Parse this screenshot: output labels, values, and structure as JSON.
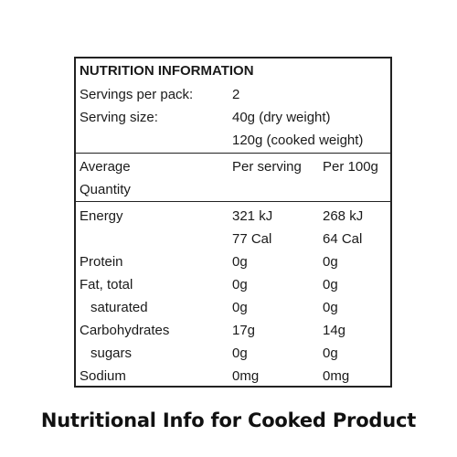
{
  "panel": {
    "title": "NUTRITION INFORMATION",
    "servings_label": "Servings per pack:",
    "servings_value": "2",
    "serving_size_label": "Serving size:",
    "serving_size_dry": "40g (dry weight)",
    "serving_size_cooked": "120g (cooked weight)",
    "header": {
      "col1_line1": "Average",
      "col1_line2": "Quantity",
      "col2": "Per serving",
      "col3": "Per 100g"
    },
    "rows": [
      {
        "label": "Energy",
        "per_serving": "321 kJ",
        "per_100g": "268 kJ"
      },
      {
        "label": "",
        "per_serving": "77 Cal",
        "per_100g": "64 Cal"
      },
      {
        "label": "Protein",
        "per_serving": "0g",
        "per_100g": "0g"
      },
      {
        "label": "Fat, total",
        "per_serving": "0g",
        "per_100g": "0g"
      },
      {
        "label": "saturated",
        "per_serving": "0g",
        "per_100g": "0g"
      },
      {
        "label": "Carbohydrates",
        "per_serving": "17g",
        "per_100g": "14g"
      },
      {
        "label": "sugars",
        "per_serving": "0g",
        "per_100g": "0g"
      },
      {
        "label": "Sodium",
        "per_serving": "0mg",
        "per_100g": "0mg"
      }
    ]
  },
  "caption": "Nutritional Info for Cooked Product"
}
